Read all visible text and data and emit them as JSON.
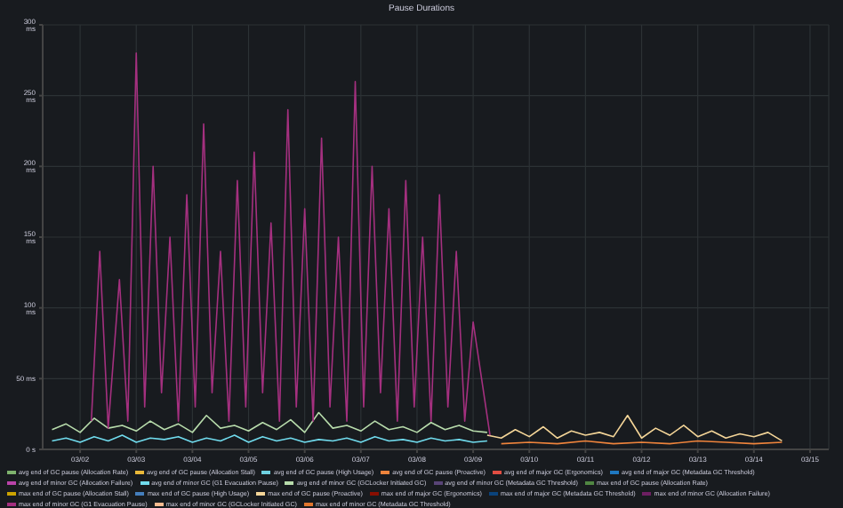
{
  "chart_data": {
    "type": "line",
    "title": "Pause Durations",
    "legend": "bottom",
    "grid": true,
    "marker": "none",
    "line_style": "solid",
    "xlim": [
      "--03-01T08:00",
      "--03-15T08:00"
    ],
    "xticks": [
      {
        "value": "--03-02",
        "label": "03/02"
      },
      {
        "value": "--03-03",
        "label": "03/03"
      },
      {
        "value": "--03-04",
        "label": "03/04"
      },
      {
        "value": "--03-05",
        "label": "03/05"
      },
      {
        "value": "--03-06",
        "label": "03/06"
      },
      {
        "value": "--03-07",
        "label": "03/07"
      },
      {
        "value": "--03-08",
        "label": "03/08"
      },
      {
        "value": "--03-09",
        "label": "03/09"
      },
      {
        "value": "--03-10",
        "label": "03/10"
      },
      {
        "value": "--03-11",
        "label": "03/11"
      },
      {
        "value": "--03-12",
        "label": "03/12"
      },
      {
        "value": "--03-13",
        "label": "03/13"
      },
      {
        "value": "--03-14",
        "label": "03/14"
      },
      {
        "value": "--03-15",
        "label": "03/15"
      }
    ],
    "ylim": [
      0,
      300
    ],
    "yticks": [
      {
        "value": 0,
        "label": "0 s"
      },
      {
        "value": 50,
        "label": "50 ms"
      },
      {
        "value": 100,
        "label": "100 ms"
      },
      {
        "value": 150,
        "label": "150 ms"
      },
      {
        "value": 200,
        "label": "200 ms"
      },
      {
        "value": 250,
        "label": "250 ms"
      },
      {
        "value": 300,
        "label": "300 ms"
      }
    ],
    "series": [
      {
        "name": "avg end of GC pause (Allocation Rate)",
        "color": "#7eb26d"
      },
      {
        "name": "avg end of GC pause (Allocation Stall)",
        "color": "#eab839"
      },
      {
        "name": "avg end of GC pause (High Usage)",
        "color": "#6ed0e0"
      },
      {
        "name": "avg end of GC pause (Proactive)",
        "color": "#ef843c",
        "x": [
          "--03-09T12:00",
          "--03-10T00:00",
          "--03-10T12:00",
          "--03-11T00:00",
          "--03-11T12:00",
          "--03-12T00:00",
          "--03-12T12:00",
          "--03-13T00:00",
          "--03-13T12:00",
          "--03-14T00:00",
          "--03-14T12:00"
        ],
        "values": [
          4,
          5,
          4,
          6,
          4,
          5,
          4,
          6,
          5,
          4,
          5
        ]
      },
      {
        "name": "avg end of major GC (Ergonomics)",
        "color": "#e24d42"
      },
      {
        "name": "avg end of major GC (Metadata GC Threshold)",
        "color": "#1f78c1"
      },
      {
        "name": "avg end of minor GC (Allocation Failure)",
        "color": "#ba43a9"
      },
      {
        "name": "avg end of minor GC (G1 Evacuation Pause)",
        "color": "#70dbed",
        "x": [
          "--03-01T12:00",
          "--03-01T18:00",
          "--03-02T00:00",
          "--03-02T06:00",
          "--03-02T12:00",
          "--03-02T18:00",
          "--03-03T00:00",
          "--03-03T06:00",
          "--03-03T12:00",
          "--03-03T18:00",
          "--03-04T00:00",
          "--03-04T06:00",
          "--03-04T12:00",
          "--03-04T18:00",
          "--03-05T00:00",
          "--03-05T06:00",
          "--03-05T12:00",
          "--03-05T18:00",
          "--03-06T00:00",
          "--03-06T06:00",
          "--03-06T12:00",
          "--03-06T18:00",
          "--03-07T00:00",
          "--03-07T06:00",
          "--03-07T12:00",
          "--03-07T18:00",
          "--03-08T00:00",
          "--03-08T06:00",
          "--03-08T12:00",
          "--03-08T18:00",
          "--03-09T00:00",
          "--03-09T06:00"
        ],
        "values": [
          6,
          8,
          5,
          9,
          6,
          10,
          5,
          8,
          7,
          9,
          5,
          8,
          6,
          10,
          5,
          9,
          6,
          8,
          5,
          7,
          6,
          8,
          5,
          9,
          6,
          7,
          5,
          8,
          6,
          7,
          5,
          6
        ]
      },
      {
        "name": "avg end of minor GC (GCLocker Initiated GC)",
        "color": "#b7dbab",
        "x": [
          "--03-01T12:00",
          "--03-01T18:00",
          "--03-02T00:00",
          "--03-02T06:00",
          "--03-02T12:00",
          "--03-02T18:00",
          "--03-03T00:00",
          "--03-03T06:00",
          "--03-03T12:00",
          "--03-03T18:00",
          "--03-04T00:00",
          "--03-04T06:00",
          "--03-04T12:00",
          "--03-04T18:00",
          "--03-05T00:00",
          "--03-05T06:00",
          "--03-05T12:00",
          "--03-05T18:00",
          "--03-06T00:00",
          "--03-06T06:00",
          "--03-06T12:00",
          "--03-06T18:00",
          "--03-07T00:00",
          "--03-07T06:00",
          "--03-07T12:00",
          "--03-07T18:00",
          "--03-08T00:00",
          "--03-08T06:00",
          "--03-08T12:00",
          "--03-08T18:00",
          "--03-09T00:00",
          "--03-09T06:00"
        ],
        "values": [
          14,
          18,
          12,
          22,
          15,
          17,
          13,
          20,
          14,
          18,
          12,
          24,
          15,
          17,
          13,
          19,
          14,
          21,
          12,
          26,
          15,
          17,
          13,
          20,
          14,
          16,
          12,
          19,
          14,
          17,
          13,
          12
        ]
      },
      {
        "name": "avg end of minor GC (Metadata GC Threshold)",
        "color": "#584477"
      },
      {
        "name": "max end of GC pause (Allocation Rate)",
        "color": "#508642"
      },
      {
        "name": "max end of GC pause (Allocation Stall)",
        "color": "#cca300"
      },
      {
        "name": "max end of GC pause (High Usage)",
        "color": "#447ebc"
      },
      {
        "name": "max end of GC pause (Proactive)",
        "color": "#f4d598",
        "x": [
          "--03-09T06:00",
          "--03-09T12:00",
          "--03-09T18:00",
          "--03-10T00:00",
          "--03-10T06:00",
          "--03-10T12:00",
          "--03-10T18:00",
          "--03-11T00:00",
          "--03-11T06:00",
          "--03-11T12:00",
          "--03-11T18:00",
          "--03-12T00:00",
          "--03-12T06:00",
          "--03-12T12:00",
          "--03-12T18:00",
          "--03-13T00:00",
          "--03-13T06:00",
          "--03-13T12:00",
          "--03-13T18:00",
          "--03-14T00:00",
          "--03-14T06:00",
          "--03-14T12:00"
        ],
        "values": [
          10,
          8,
          14,
          9,
          16,
          8,
          13,
          10,
          12,
          9,
          24,
          8,
          15,
          10,
          17,
          9,
          13,
          8,
          11,
          9,
          12,
          6
        ]
      },
      {
        "name": "max end of major GC (Ergonomics)",
        "color": "#890f02"
      },
      {
        "name": "max end of major GC (Metadata GC Threshold)",
        "color": "#0a437c"
      },
      {
        "name": "max end of minor GC (Allocation Failure)",
        "color": "#6d1f62"
      },
      {
        "name": "max end of minor GC (G1 Evacuation Pause)",
        "color": "#a4307f",
        "x": [
          "--03-02T04:48",
          "--03-02T08:24",
          "--03-02T12:00",
          "--03-02T16:48",
          "--03-02T20:24",
          "--03-03T00:00",
          "--03-03T03:36",
          "--03-03T07:12",
          "--03-03T10:48",
          "--03-03T14:24",
          "--03-03T18:00",
          "--03-03T21:36",
          "--03-04T01:12",
          "--03-04T04:48",
          "--03-04T08:24",
          "--03-04T12:00",
          "--03-04T15:36",
          "--03-04T19:12",
          "--03-04T22:48",
          "--03-05T02:24",
          "--03-05T06:00",
          "--03-05T09:36",
          "--03-05T13:12",
          "--03-05T16:48",
          "--03-05T20:24",
          "--03-06T00:00",
          "--03-06T03:36",
          "--03-06T07:12",
          "--03-06T10:48",
          "--03-06T14:24",
          "--03-06T18:00",
          "--03-06T21:36",
          "--03-07T01:12",
          "--03-07T04:48",
          "--03-07T08:24",
          "--03-07T12:00",
          "--03-07T15:36",
          "--03-07T19:12",
          "--03-07T22:48",
          "--03-08T02:24",
          "--03-08T06:00",
          "--03-08T09:36",
          "--03-08T13:12",
          "--03-08T16:48",
          "--03-08T20:24",
          "--03-09T00:00",
          "--03-09T07:12"
        ],
        "values": [
          20,
          140,
          15,
          120,
          20,
          280,
          30,
          200,
          40,
          150,
          20,
          180,
          30,
          230,
          40,
          140,
          20,
          190,
          30,
          210,
          40,
          160,
          20,
          240,
          30,
          170,
          20,
          220,
          30,
          150,
          20,
          260,
          30,
          200,
          40,
          170,
          20,
          190,
          30,
          150,
          20,
          180,
          30,
          140,
          20,
          90,
          10
        ]
      },
      {
        "name": "max end of minor GC (GCLocker Initiated GC)",
        "color": "#f9ba8f"
      },
      {
        "name": "max end of minor GC (Metadata GC Threshold)",
        "color": "#e0752d"
      }
    ]
  }
}
